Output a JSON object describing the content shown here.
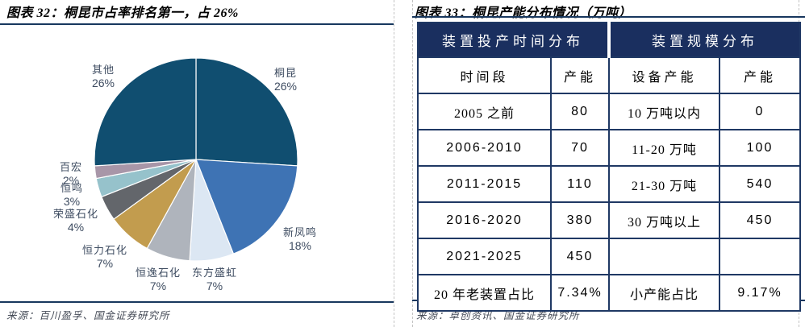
{
  "left_panel": {
    "title": "图表 32：桐昆市占率排名第一，占 26%",
    "source": "来源：百川盈孚、国金证券研究所"
  },
  "right_panel": {
    "title": "图表 33：桐昆产能分布情况（万吨）",
    "source": "来源：卓创资讯、国金证券研究所"
  },
  "colors": {
    "accent_navy": "#1A2F5F",
    "rule_navy": "#17375E",
    "table_border": "#1F3864",
    "pie_label_text": "#3E4C61"
  },
  "chart_data": [
    {
      "type": "pie",
      "title": "桐昆市占率排名第一，占 26%",
      "start_angle_deg": -90,
      "direction": "clockwise",
      "legend_position": "outside-labels",
      "slices": [
        {
          "name": "桐昆",
          "value": 26,
          "pct_label": "26%",
          "color": "#104E70"
        },
        {
          "name": "新凤鸣",
          "value": 18,
          "pct_label": "18%",
          "color": "#3E73B4"
        },
        {
          "name": "东方盛虹",
          "value": 7,
          "pct_label": "7%",
          "color": "#DCE7F3"
        },
        {
          "name": "恒逸石化",
          "value": 7,
          "pct_label": "7%",
          "color": "#AFB4BC"
        },
        {
          "name": "恒力石化",
          "value": 7,
          "pct_label": "7%",
          "color": "#C29C4E"
        },
        {
          "name": "荣盛石化",
          "value": 4,
          "pct_label": "4%",
          "color": "#63666B"
        },
        {
          "name": "恒鸣",
          "value": 3,
          "pct_label": "3%",
          "color": "#96C2CB"
        },
        {
          "name": "百宏",
          "value": 2,
          "pct_label": "2%",
          "color": "#A896A8"
        },
        {
          "name": "其他",
          "value": 26,
          "pct_label": "26%",
          "color": "#104E70"
        }
      ]
    },
    {
      "type": "table",
      "title": "桐昆产能分布情况（万吨）",
      "group_headers": [
        "装置投产时间分布",
        "装置规模分布"
      ],
      "col_headers": [
        "时间段",
        "产能",
        "设备产能",
        "产能"
      ],
      "rows": [
        [
          "2005 之前",
          "80",
          "10 万吨以内",
          "0"
        ],
        [
          "2006-2010",
          "70",
          "11-20 万吨",
          "100"
        ],
        [
          "2011-2015",
          "110",
          "21-30 万吨",
          "540"
        ],
        [
          "2016-2020",
          "380",
          "30 万吨以上",
          "450"
        ],
        [
          "2021-2025",
          "450",
          "",
          ""
        ],
        [
          "20 年老装置占比",
          "7.34%",
          "小产能占比",
          "9.17%"
        ]
      ]
    }
  ]
}
